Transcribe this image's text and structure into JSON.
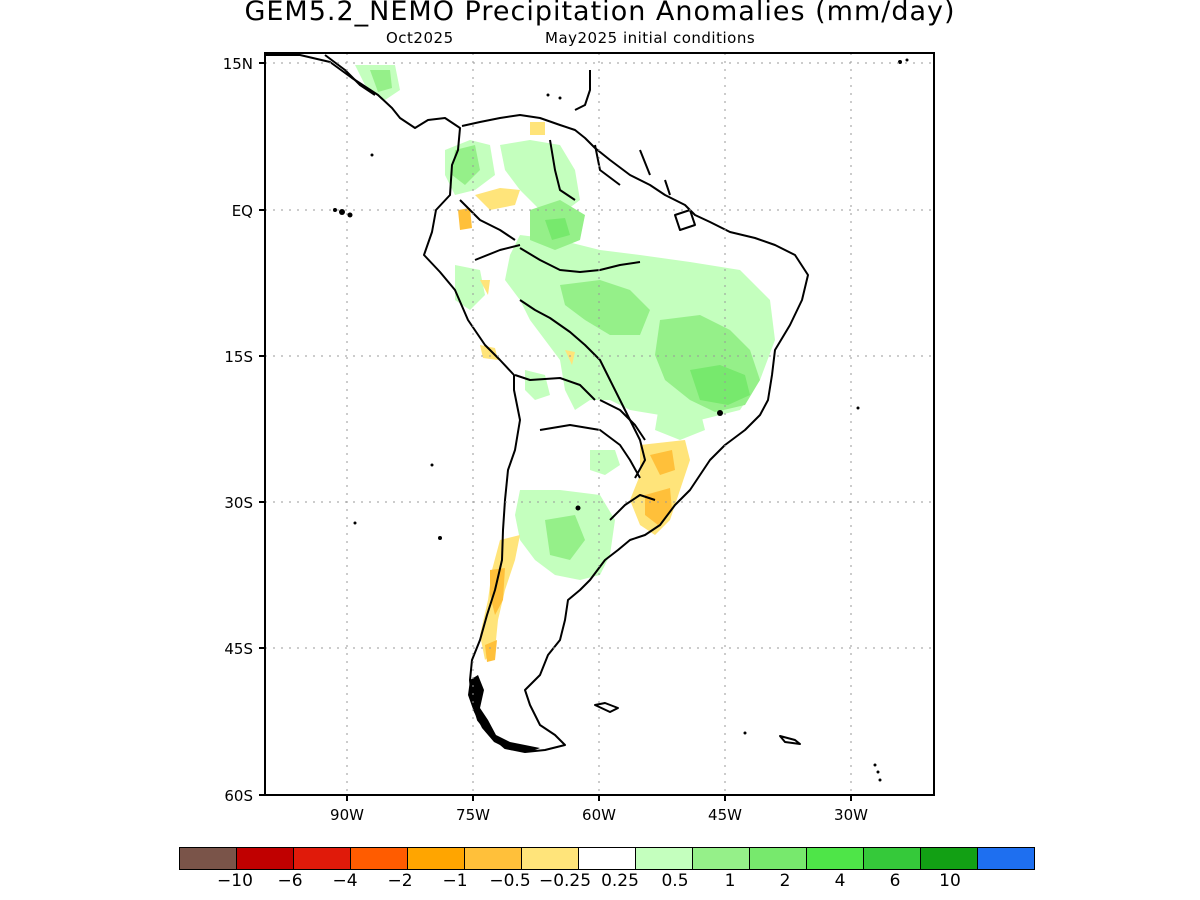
{
  "title": "GEM5.2_NEMO Precipitation Anomalies (mm/day)",
  "subtitle_left": "Oct2025",
  "subtitle_right": "May2025 initial conditions",
  "axes": {
    "lat_labels": [
      "15N",
      "EQ",
      "15S",
      "30S",
      "45S",
      "60S"
    ],
    "lon_labels": [
      "90W",
      "75W",
      "60W",
      "45W",
      "30W"
    ]
  },
  "legend": {
    "colors": [
      "#7a5449",
      "#c00000",
      "#e01a0a",
      "#ff5c00",
      "#ffa500",
      "#ffc03a",
      "#ffe47a",
      "#ffffff",
      "#c4ffbe",
      "#95f089",
      "#77e96d",
      "#4ee548",
      "#35c93a",
      "#12a014",
      "#1e6ff0"
    ],
    "labels": [
      "−10",
      "−6",
      "−4",
      "−2",
      "−1",
      "−0.5",
      "−0.25",
      "0.25",
      "0.5",
      "1",
      "2",
      "4",
      "6",
      "10"
    ]
  },
  "chart_data": {
    "type": "map",
    "variable": "Precipitation anomaly (mm/day)",
    "lon_range": [
      -100,
      -20
    ],
    "lat_range": [
      -60,
      15
    ],
    "grid": true
  }
}
